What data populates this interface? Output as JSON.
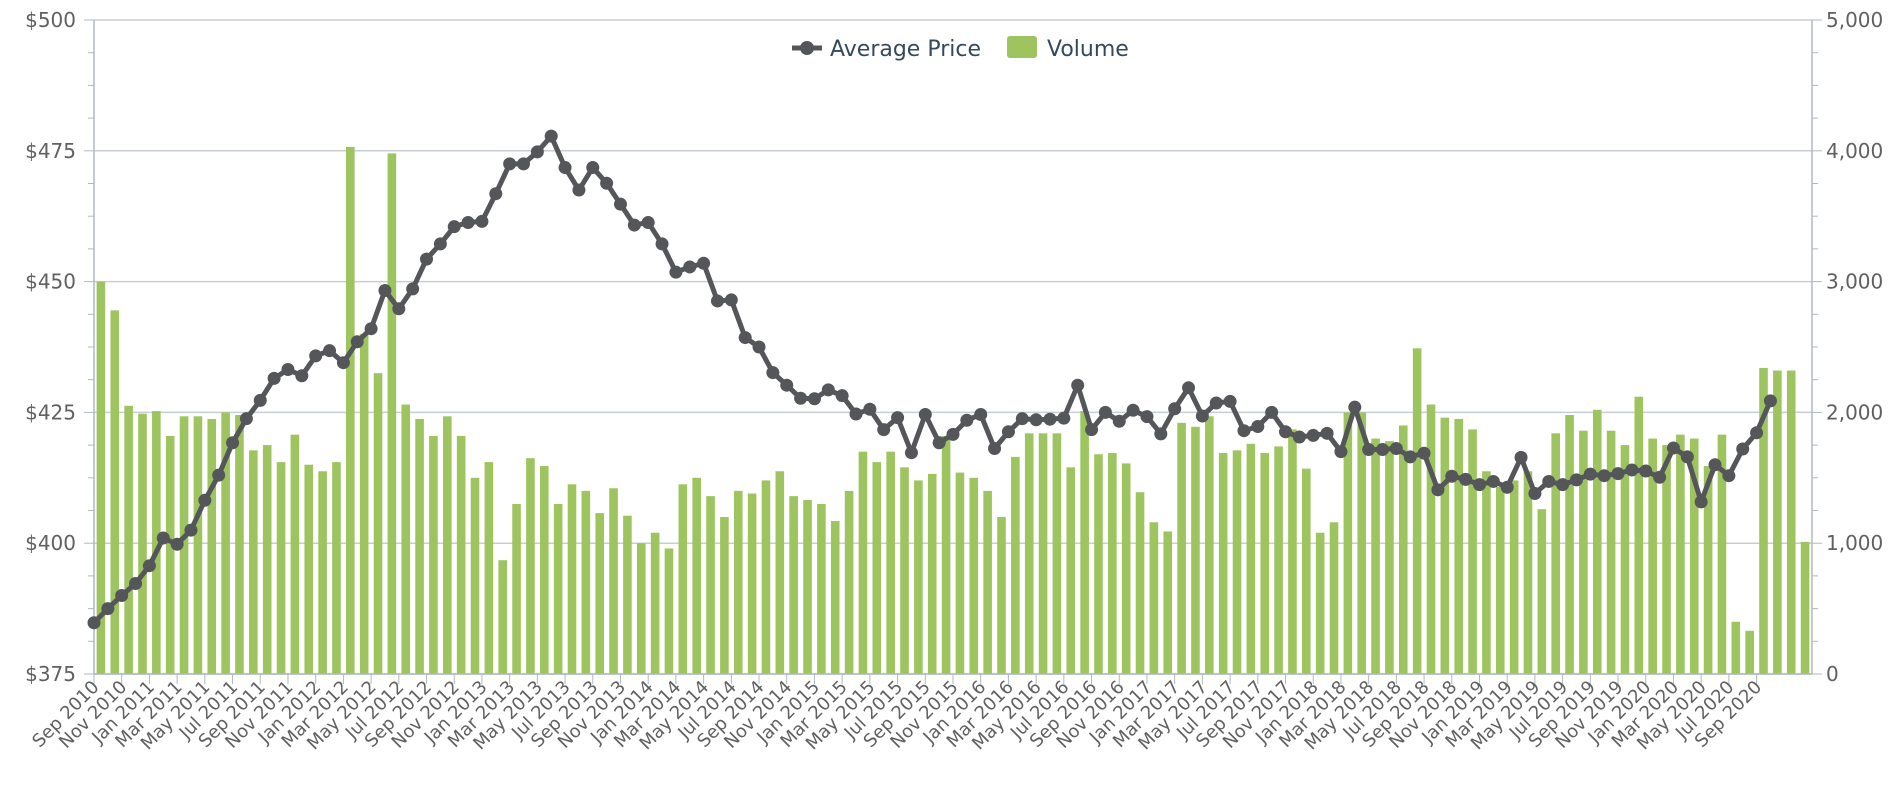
{
  "chart_data": {
    "type": "bar+line",
    "legend": {
      "placement": "top-center",
      "items": [
        {
          "label": "Average Price",
          "kind": "line",
          "color": "#55565a"
        },
        {
          "label": "Volume",
          "kind": "bar",
          "color": "#9dc45f"
        }
      ]
    },
    "x_labels": [
      "Sep 2010",
      "Nov 2010",
      "Jan 2011",
      "Mar 2011",
      "May 2011",
      "Jul 2011",
      "Sep 2011",
      "Nov 2011",
      "Jan 2012",
      "Mar 2012",
      "May 2012",
      "Jul 2012",
      "Sep 2012",
      "Nov 2012",
      "Jan 2013",
      "Mar 2013",
      "May 2013",
      "Jul 2013",
      "Sep 2013",
      "Nov 2013",
      "Jan 2014",
      "Mar 2014",
      "May 2014",
      "Jul 2014",
      "Sep 2014",
      "Nov 2014",
      "Jan 2015",
      "Mar 2015",
      "May 2015",
      "Jul 2015",
      "Sep 2015",
      "Nov 2015",
      "Jan 2016",
      "Mar 2016",
      "May 2016",
      "Jul 2016",
      "Sep 2016",
      "Nov 2016",
      "Jan 2017",
      "Mar 2017",
      "May 2017",
      "Jul 2017",
      "Sep 2017",
      "Nov 2017",
      "Jan 2018",
      "Mar 2018",
      "May 2018",
      "Jul 2018",
      "Sep 2018",
      "Nov 2018",
      "Jan 2019",
      "Mar 2019",
      "May 2019",
      "Jul 2019",
      "Sep 2019",
      "Nov 2019",
      "Jan 2020",
      "Mar 2020",
      "May 2020",
      "Jul 2020",
      "Sep 2020"
    ],
    "y_left": {
      "min": 375,
      "max": 500,
      "ticks": [
        "$375",
        "$400",
        "$425",
        "$450",
        "$475",
        "$500"
      ]
    },
    "y_right": {
      "min": 0,
      "max": 5000,
      "ticks": [
        "0",
        "1,000",
        "2,000",
        "3,000",
        "4,000",
        "5,000"
      ]
    },
    "series": [
      {
        "name": "Volume",
        "type": "bar",
        "axis": "right",
        "values": [
          3000,
          2780,
          2050,
          1990,
          2010,
          1820,
          1970,
          1970,
          1950,
          2000,
          1980,
          1710,
          1750,
          1620,
          1830,
          1600,
          1550,
          1620,
          4030,
          2600,
          2300,
          3980,
          2060,
          1950,
          1820,
          1970,
          1820,
          1500,
          1620,
          870,
          1300,
          1650,
          1590,
          1300,
          1450,
          1400,
          1230,
          1420,
          1210,
          1000,
          1080,
          960,
          1450,
          1500,
          1360,
          1200,
          1400,
          1380,
          1480,
          1550,
          1360,
          1330,
          1300,
          1170,
          1400,
          1700,
          1620,
          1700,
          1580,
          1480,
          1530,
          1820,
          1540,
          1500,
          1400,
          1200,
          1660,
          1840,
          1840,
          1840,
          1580,
          2010,
          1680,
          1690,
          1610,
          1390,
          1160,
          1090,
          1920,
          1890,
          1970,
          1690,
          1710,
          1760,
          1690,
          1740,
          1870,
          1570,
          1080,
          1160,
          2000,
          2000,
          1800,
          1780,
          1900,
          2490,
          2060,
          1960,
          1950,
          1870,
          1550,
          1430,
          1480,
          1550,
          1260,
          1840,
          1980,
          1860,
          2020,
          1860,
          1750,
          2120,
          1800,
          1750,
          1830,
          1800,
          1590,
          1830,
          400,
          330,
          2340,
          2320,
          2320,
          1010
        ]
      },
      {
        "name": "Average Price",
        "type": "line",
        "axis": "left",
        "values": [
          384.8,
          387.5,
          390,
          392.3,
          395.7,
          401,
          399.8,
          402.5,
          408.2,
          413,
          419.2,
          423.8,
          427.3,
          431.5,
          433.2,
          432,
          435.8,
          436.8,
          434.5,
          438.5,
          441,
          448.3,
          444.8,
          448.6,
          454.3,
          457.2,
          460.5,
          461.3,
          461.5,
          466.8,
          472.5,
          472.5,
          474.8,
          477.8,
          471.8,
          467.5,
          471.8,
          468.8,
          464.8,
          460.8,
          461.3,
          457.2,
          451.8,
          452.8,
          453.5,
          446.3,
          446.5,
          439.3,
          437.5,
          432.6,
          430.2,
          427.7,
          427.6,
          429.3,
          428.2,
          424.7,
          425.6,
          421.7,
          424,
          417.3,
          424.6,
          419.2,
          420.8,
          423.5,
          424.6,
          418.1,
          421.3,
          423.8,
          423.6,
          423.7,
          423.9,
          430.2,
          421.7,
          425,
          423.3,
          425.4,
          424.2,
          420.9,
          425.7,
          429.7,
          424.3,
          426.8,
          427.1,
          421.5,
          422.3,
          425,
          421.3,
          420.3,
          420.6,
          421,
          417.5,
          426,
          417.9,
          417.9,
          418.1,
          416.5,
          417.2,
          410.2,
          412.8,
          412.2,
          411.2,
          411.8,
          410.7,
          416.4,
          409.5,
          411.8,
          411.2,
          412.1,
          413.2,
          412.9,
          413.3,
          414,
          413.8,
          412.6,
          418.2,
          416.5,
          407.9,
          415,
          412.9,
          418,
          421.1,
          427.2
        ]
      }
    ]
  }
}
